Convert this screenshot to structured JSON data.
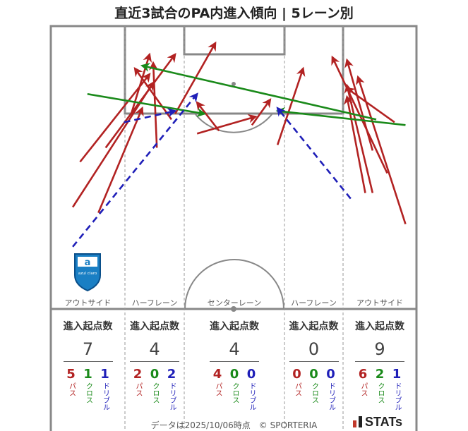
{
  "title": "直近3試合のPA内進入傾向 | 5レーン別",
  "footer": "データは2025/10/06時点　© SPORTERIA",
  "brand": "STATs",
  "emblem_text": "azul claro",
  "colors": {
    "pass": "#b22222",
    "cross": "#1a8a1a",
    "dribble": "#1f1fb8",
    "lines": "#888888",
    "lane": "#999999"
  },
  "lanes": [
    {
      "label": "アウトサイド",
      "stats_label": "進入起点数",
      "total": "7",
      "sub": [
        {
          "value": "5",
          "label": "パス",
          "type": "pass"
        },
        {
          "value": "1",
          "label": "クロス",
          "type": "cross"
        },
        {
          "value": "1",
          "label": "ドリブル",
          "type": "dribble"
        }
      ]
    },
    {
      "label": "ハーフレーン",
      "stats_label": "進入起点数",
      "total": "4",
      "sub": [
        {
          "value": "2",
          "label": "パス",
          "type": "pass"
        },
        {
          "value": "0",
          "label": "クロス",
          "type": "cross"
        },
        {
          "value": "2",
          "label": "ドリブル",
          "type": "dribble"
        }
      ]
    },
    {
      "label": "センターレーン",
      "stats_label": "進入起点数",
      "total": "4",
      "sub": [
        {
          "value": "4",
          "label": "パス",
          "type": "pass"
        },
        {
          "value": "0",
          "label": "クロス",
          "type": "cross"
        },
        {
          "value": "0",
          "label": "ドリブル",
          "type": "dribble"
        }
      ]
    },
    {
      "label": "ハーフレーン",
      "stats_label": "進入起点数",
      "total": "0",
      "sub": [
        {
          "value": "0",
          "label": "パス",
          "type": "pass"
        },
        {
          "value": "0",
          "label": "クロス",
          "type": "cross"
        },
        {
          "value": "0",
          "label": "ドリブル",
          "type": "dribble"
        }
      ]
    },
    {
      "label": "アウトサイド",
      "stats_label": "進入起点数",
      "total": "9",
      "sub": [
        {
          "value": "6",
          "label": "パス",
          "type": "pass"
        },
        {
          "value": "2",
          "label": "クロス",
          "type": "cross"
        },
        {
          "value": "1",
          "label": "ドリブル",
          "type": "dribble"
        }
      ]
    }
  ],
  "chart_data": {
    "type": "scatter",
    "pitch_extent": {
      "x": [
        0,
        100
      ],
      "y": [
        0,
        100
      ]
    },
    "arrows": [
      {
        "type": "pass",
        "from": [
          6,
          36
        ],
        "to": [
          28,
          80
        ]
      },
      {
        "type": "pass",
        "from": [
          13,
          34
        ],
        "to": [
          25,
          71
        ]
      },
      {
        "type": "pass",
        "from": [
          8,
          52
        ],
        "to": [
          27,
          83
        ]
      },
      {
        "type": "pass",
        "from": [
          15,
          57
        ],
        "to": [
          34,
          90
        ]
      },
      {
        "type": "pass",
        "from": [
          22,
          69
        ],
        "to": [
          27,
          90
        ]
      },
      {
        "type": "pass",
        "from": [
          29,
          57
        ],
        "to": [
          28,
          87
        ]
      },
      {
        "type": "pass",
        "from": [
          33,
          67
        ],
        "to": [
          23,
          85
        ]
      },
      {
        "type": "pass",
        "from": [
          34,
          69
        ],
        "to": [
          45,
          94
        ]
      },
      {
        "type": "pass",
        "from": [
          40,
          62
        ],
        "to": [
          56,
          68
        ]
      },
      {
        "type": "pass",
        "from": [
          46,
          63
        ],
        "to": [
          40,
          73
        ]
      },
      {
        "type": "pass",
        "from": [
          55,
          65
        ],
        "to": [
          60,
          74
        ]
      },
      {
        "type": "pass",
        "from": [
          62,
          58
        ],
        "to": [
          69,
          85
        ]
      },
      {
        "type": "pass",
        "from": [
          88,
          56
        ],
        "to": [
          81,
          88
        ]
      },
      {
        "type": "pass",
        "from": [
          92,
          48
        ],
        "to": [
          77,
          89
        ]
      },
      {
        "type": "pass",
        "from": [
          88,
          41
        ],
        "to": [
          81,
          79
        ]
      },
      {
        "type": "pass",
        "from": [
          97,
          30
        ],
        "to": [
          84,
          82
        ]
      },
      {
        "type": "pass",
        "from": [
          94,
          66
        ],
        "to": [
          81,
          78
        ]
      },
      {
        "type": "pass",
        "from": [
          86,
          41
        ],
        "to": [
          81,
          75
        ]
      },
      {
        "type": "cross",
        "from": [
          10,
          76
        ],
        "to": [
          42,
          69
        ]
      },
      {
        "type": "cross",
        "from": [
          97,
          65
        ],
        "to": [
          62,
          70
        ]
      },
      {
        "type": "cross",
        "from": [
          89,
          67
        ],
        "to": [
          25,
          86
        ]
      },
      {
        "type": "dribble",
        "from": [
          6,
          22
        ],
        "to": [
          40,
          76
        ]
      },
      {
        "type": "dribble",
        "from": [
          20,
          66
        ],
        "to": [
          34,
          70
        ]
      },
      {
        "type": "dribble",
        "from": [
          82,
          39
        ],
        "to": [
          62,
          71
        ]
      }
    ]
  }
}
